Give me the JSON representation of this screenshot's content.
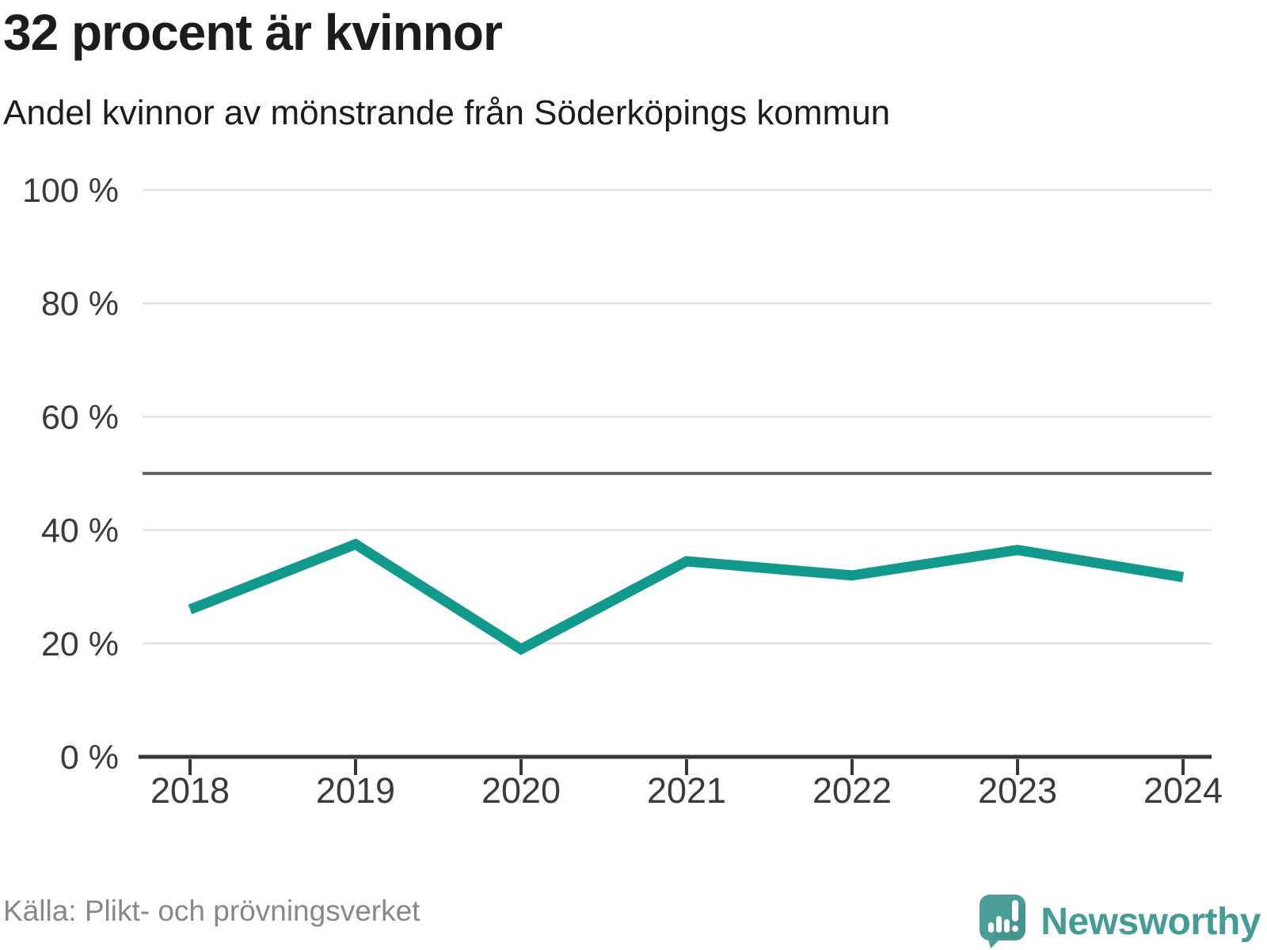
{
  "header": {
    "title": "32 procent är kvinnor",
    "subtitle": "Andel kvinnor av mönstrande från Söderköpings kommun"
  },
  "footer": {
    "source": "Källa: Plikt- och prövningsverket",
    "brand": "Newsworthy"
  },
  "colors": {
    "line": "#11998c",
    "reference_line": "#65656d",
    "grid": "#e2e2e2",
    "axis": "#383838",
    "axis_text": "#3a3a3a",
    "title_text": "#1c1c1c",
    "muted_text": "#888888",
    "brand_teal": "#459c95",
    "logo_bg": "#4a9e97"
  },
  "chart_data": {
    "type": "line",
    "title": "32 procent är kvinnor",
    "subtitle": "Andel kvinnor av mönstrande från Söderköpings kommun",
    "x": [
      2018,
      2019,
      2020,
      2021,
      2022,
      2023,
      2024
    ],
    "series": [
      {
        "name": "Andel kvinnor av mönstrande",
        "values": [
          26,
          37.5,
          19,
          34.5,
          32,
          36.5,
          31.7
        ]
      }
    ],
    "xlabel": "",
    "ylabel": "",
    "ylim": [
      0,
      100
    ],
    "yticks": [
      0,
      20,
      40,
      60,
      80,
      100
    ],
    "ytick_format": "{v} %",
    "reference_line": 50,
    "grid": "horizontal",
    "legend": "none",
    "unit": "%"
  }
}
